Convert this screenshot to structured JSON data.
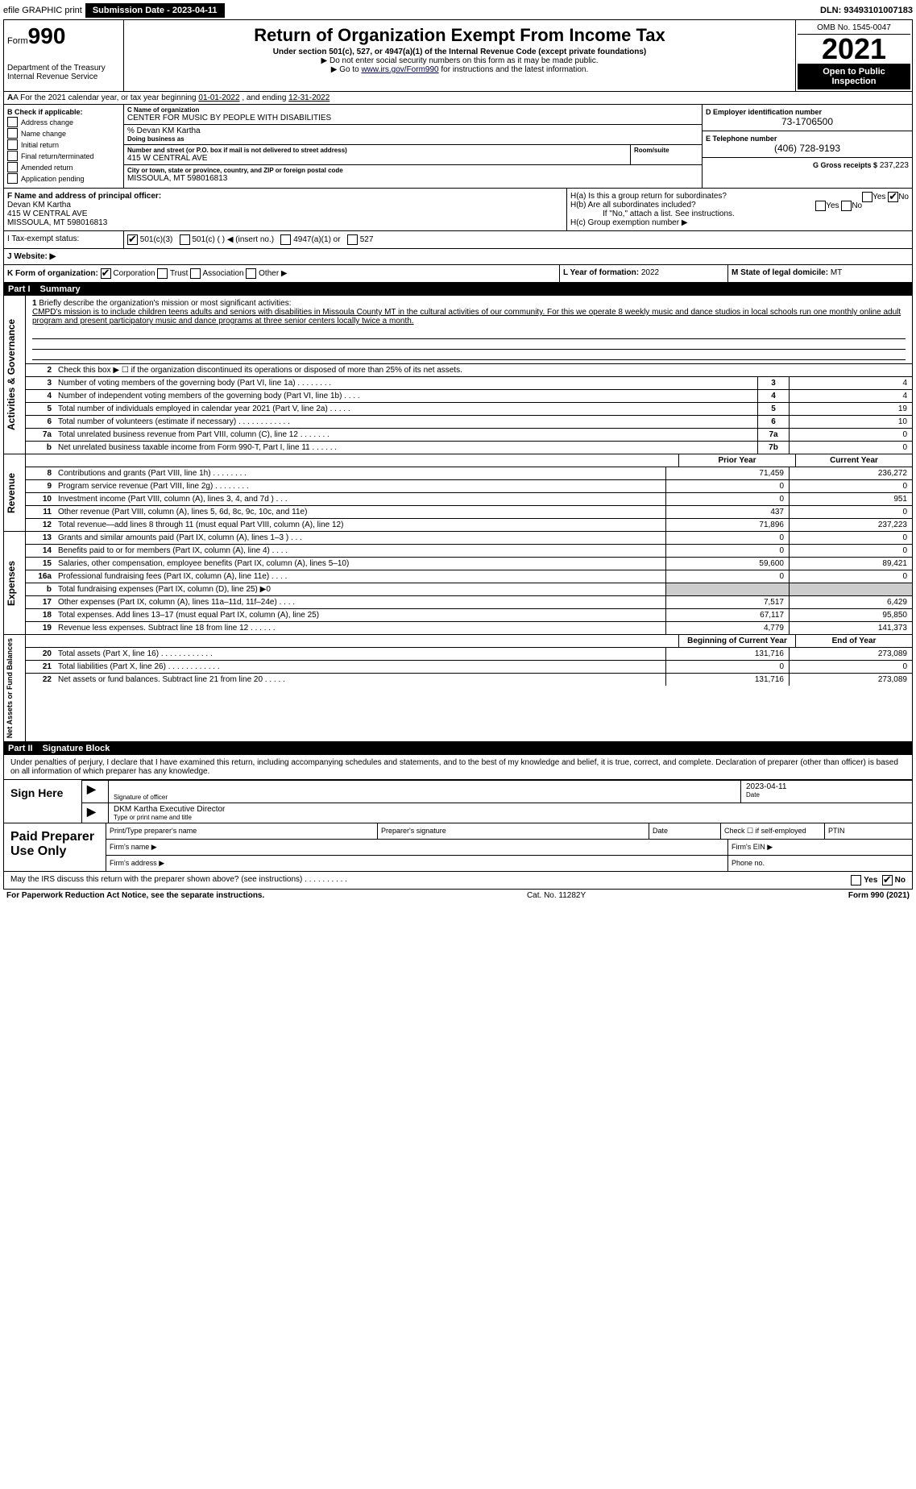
{
  "top": {
    "efile": "efile GRAPHIC print",
    "submission": "Submission Date - 2023-04-11",
    "dln": "DLN: 93493101007183"
  },
  "header": {
    "form_prefix": "Form",
    "form_num": "990",
    "dept": "Department of the Treasury\nInternal Revenue Service",
    "title": "Return of Organization Exempt From Income Tax",
    "sub": "Under section 501(c), 527, or 4947(a)(1) of the Internal Revenue Code (except private foundations)",
    "note1": "▶ Do not enter social security numbers on this form as it may be made public.",
    "note2_pre": "▶ Go to ",
    "note2_link": "www.irs.gov/Form990",
    "note2_post": " for instructions and the latest information.",
    "omb": "OMB No. 1545-0047",
    "year": "2021",
    "open": "Open to Public Inspection"
  },
  "rowA": {
    "text_pre": "A For the 2021 calendar year, or tax year beginning ",
    "begin": "01-01-2022",
    "mid": " , and ending ",
    "end": "12-31-2022"
  },
  "colB": {
    "hdr": "B Check if applicable:",
    "items": [
      "Address change",
      "Name change",
      "Initial return",
      "Final return/terminated",
      "Amended return",
      "Application pending"
    ]
  },
  "colC": {
    "name_lbl": "C Name of organization",
    "name": "CENTER FOR MUSIC BY PEOPLE WITH DISABILITIES",
    "care_lbl": "% Devan KM Kartha",
    "dba_lbl": "Doing business as",
    "addr_lbl": "Number and street (or P.O. box if mail is not delivered to street address)",
    "room_lbl": "Room/suite",
    "addr": "415 W CENTRAL AVE",
    "city_lbl": "City or town, state or province, country, and ZIP or foreign postal code",
    "city": "MISSOULA, MT  598016813"
  },
  "colD": {
    "ein_lbl": "D Employer identification number",
    "ein": "73-1706500",
    "tel_lbl": "E Telephone number",
    "tel": "(406) 728-9193",
    "gross_lbl": "G Gross receipts $",
    "gross": "237,223"
  },
  "rowF": {
    "lbl": "F  Name and address of principal officer:",
    "name": "Devan KM Kartha",
    "addr1": "415 W CENTRAL AVE",
    "addr2": "MISSOULA, MT  598016813"
  },
  "rowH": {
    "ha": "H(a)  Is this a group return for subordinates?",
    "hb": "H(b)  Are all subordinates included?",
    "hb_note": "If \"No,\" attach a list. See instructions.",
    "hc": "H(c)  Group exemption number ▶"
  },
  "rowI": {
    "lbl": "I   Tax-exempt status:",
    "opts": [
      "501(c)(3)",
      "501(c) (   ) ◀ (insert no.)",
      "4947(a)(1) or",
      "527"
    ]
  },
  "rowJ": {
    "lbl": "J   Website: ▶"
  },
  "rowK": {
    "lbl": "K Form of organization:",
    "opts": [
      "Corporation",
      "Trust",
      "Association",
      "Other ▶"
    ]
  },
  "rowL": {
    "lbl": "L Year of formation:",
    "val": "2022"
  },
  "rowM": {
    "lbl": "M State of legal domicile:",
    "val": "MT"
  },
  "part1": {
    "hdr": "Part I",
    "title": "Summary"
  },
  "mission": {
    "num": "1",
    "lbl": "Briefly describe the organization's mission or most significant activities:",
    "text": "CMPD's mission is to include children teens adults and seniors with disabilities in Missoula County MT in the cultural activities of our community. For this we operate 8 weekly music and dance studios in local schools run one monthly online adult program and present participatory music and dance programs at three senior centers locally twice a month."
  },
  "gov_lines": [
    {
      "n": "2",
      "t": "Check this box ▶ ☐ if the organization discontinued its operations or disposed of more than 25% of its net assets."
    },
    {
      "n": "3",
      "t": "Number of voting members of the governing body (Part VI, line 1a)   .   .   .   .   .   .   .   .",
      "box": "3",
      "v": "4"
    },
    {
      "n": "4",
      "t": "Number of independent voting members of the governing body (Part VI, line 1b)   .   .   .   .",
      "box": "4",
      "v": "4"
    },
    {
      "n": "5",
      "t": "Total number of individuals employed in calendar year 2021 (Part V, line 2a)   .   .   .   .   .",
      "box": "5",
      "v": "19"
    },
    {
      "n": "6",
      "t": "Total number of volunteers (estimate if necessary)   .   .   .   .   .   .   .   .   .   .   .   .",
      "box": "6",
      "v": "10"
    },
    {
      "n": "7a",
      "t": "Total unrelated business revenue from Part VIII, column (C), line 12   .   .   .   .   .   .   .",
      "box": "7a",
      "v": "0"
    },
    {
      "n": "b",
      "t": "Net unrelated business taxable income from Form 990-T, Part I, line 11   .   .   .   .   .   .",
      "box": "7b",
      "v": "0"
    }
  ],
  "rev_hdr": {
    "prior": "Prior Year",
    "curr": "Current Year"
  },
  "rev_lines": [
    {
      "n": "8",
      "t": "Contributions and grants (Part VIII, line 1h)   .   .   .   .   .   .   .   .",
      "p": "71,459",
      "c": "236,272"
    },
    {
      "n": "9",
      "t": "Program service revenue (Part VIII, line 2g)   .   .   .   .   .   .   .   .",
      "p": "0",
      "c": "0"
    },
    {
      "n": "10",
      "t": "Investment income (Part VIII, column (A), lines 3, 4, and 7d )   .   .   .",
      "p": "0",
      "c": "951"
    },
    {
      "n": "11",
      "t": "Other revenue (Part VIII, column (A), lines 5, 6d, 8c, 9c, 10c, and 11e)",
      "p": "437",
      "c": "0"
    },
    {
      "n": "12",
      "t": "Total revenue—add lines 8 through 11 (must equal Part VIII, column (A), line 12)",
      "p": "71,896",
      "c": "237,223"
    }
  ],
  "exp_lines": [
    {
      "n": "13",
      "t": "Grants and similar amounts paid (Part IX, column (A), lines 1–3 )   .   .   .",
      "p": "0",
      "c": "0"
    },
    {
      "n": "14",
      "t": "Benefits paid to or for members (Part IX, column (A), line 4)   .   .   .   .",
      "p": "0",
      "c": "0"
    },
    {
      "n": "15",
      "t": "Salaries, other compensation, employee benefits (Part IX, column (A), lines 5–10)",
      "p": "59,600",
      "c": "89,421"
    },
    {
      "n": "16a",
      "t": "Professional fundraising fees (Part IX, column (A), line 11e)   .   .   .   .",
      "p": "0",
      "c": "0"
    },
    {
      "n": "b",
      "t": "Total fundraising expenses (Part IX, column (D), line 25) ▶0",
      "grey": true
    },
    {
      "n": "17",
      "t": "Other expenses (Part IX, column (A), lines 11a–11d, 11f–24e)   .   .   .   .",
      "p": "7,517",
      "c": "6,429"
    },
    {
      "n": "18",
      "t": "Total expenses. Add lines 13–17 (must equal Part IX, column (A), line 25)",
      "p": "67,117",
      "c": "95,850"
    },
    {
      "n": "19",
      "t": "Revenue less expenses. Subtract line 18 from line 12   .   .   .   .   .   .",
      "p": "4,779",
      "c": "141,373"
    }
  ],
  "net_hdr": {
    "begin": "Beginning of Current Year",
    "end": "End of Year"
  },
  "net_lines": [
    {
      "n": "20",
      "t": "Total assets (Part X, line 16)   .   .   .   .   .   .   .   .   .   .   .   .",
      "p": "131,716",
      "c": "273,089"
    },
    {
      "n": "21",
      "t": "Total liabilities (Part X, line 26)  .   .   .   .   .   .   .   .   .   .   .   .",
      "p": "0",
      "c": "0"
    },
    {
      "n": "22",
      "t": "Net assets or fund balances. Subtract line 21 from line 20   .   .   .   .   .",
      "p": "131,716",
      "c": "273,089"
    }
  ],
  "part2": {
    "hdr": "Part II",
    "title": "Signature Block"
  },
  "sig": {
    "decl": "Under penalties of perjury, I declare that I have examined this return, including accompanying schedules and statements, and to the best of my knowledge and belief, it is true, correct, and complete. Declaration of preparer (other than officer) is based on all information of which preparer has any knowledge.",
    "sign_here": "Sign Here",
    "sig_of": "Signature of officer",
    "date": "Date",
    "date_val": "2023-04-11",
    "name": "DKM Kartha  Executive Director",
    "type_lbl": "Type or print name and title",
    "paid": "Paid Preparer Use Only",
    "pt_name": "Print/Type preparer's name",
    "pt_sig": "Preparer's signature",
    "pt_date": "Date",
    "pt_check": "Check ☐ if self-employed",
    "ptin": "PTIN",
    "firm_name": "Firm's name   ▶",
    "firm_ein": "Firm's EIN ▶",
    "firm_addr": "Firm's address ▶",
    "phone": "Phone no."
  },
  "footer": {
    "discuss": "May the IRS discuss this return with the preparer shown above? (see instructions)   .   .   .   .   .   .   .   .   .   .",
    "yes": "Yes",
    "no": "No",
    "pra": "For Paperwork Reduction Act Notice, see the separate instructions.",
    "cat": "Cat. No. 11282Y",
    "form": "Form 990 (2021)"
  },
  "tabs": {
    "gov": "Activities & Governance",
    "rev": "Revenue",
    "exp": "Expenses",
    "net": "Net Assets or Fund Balances"
  }
}
